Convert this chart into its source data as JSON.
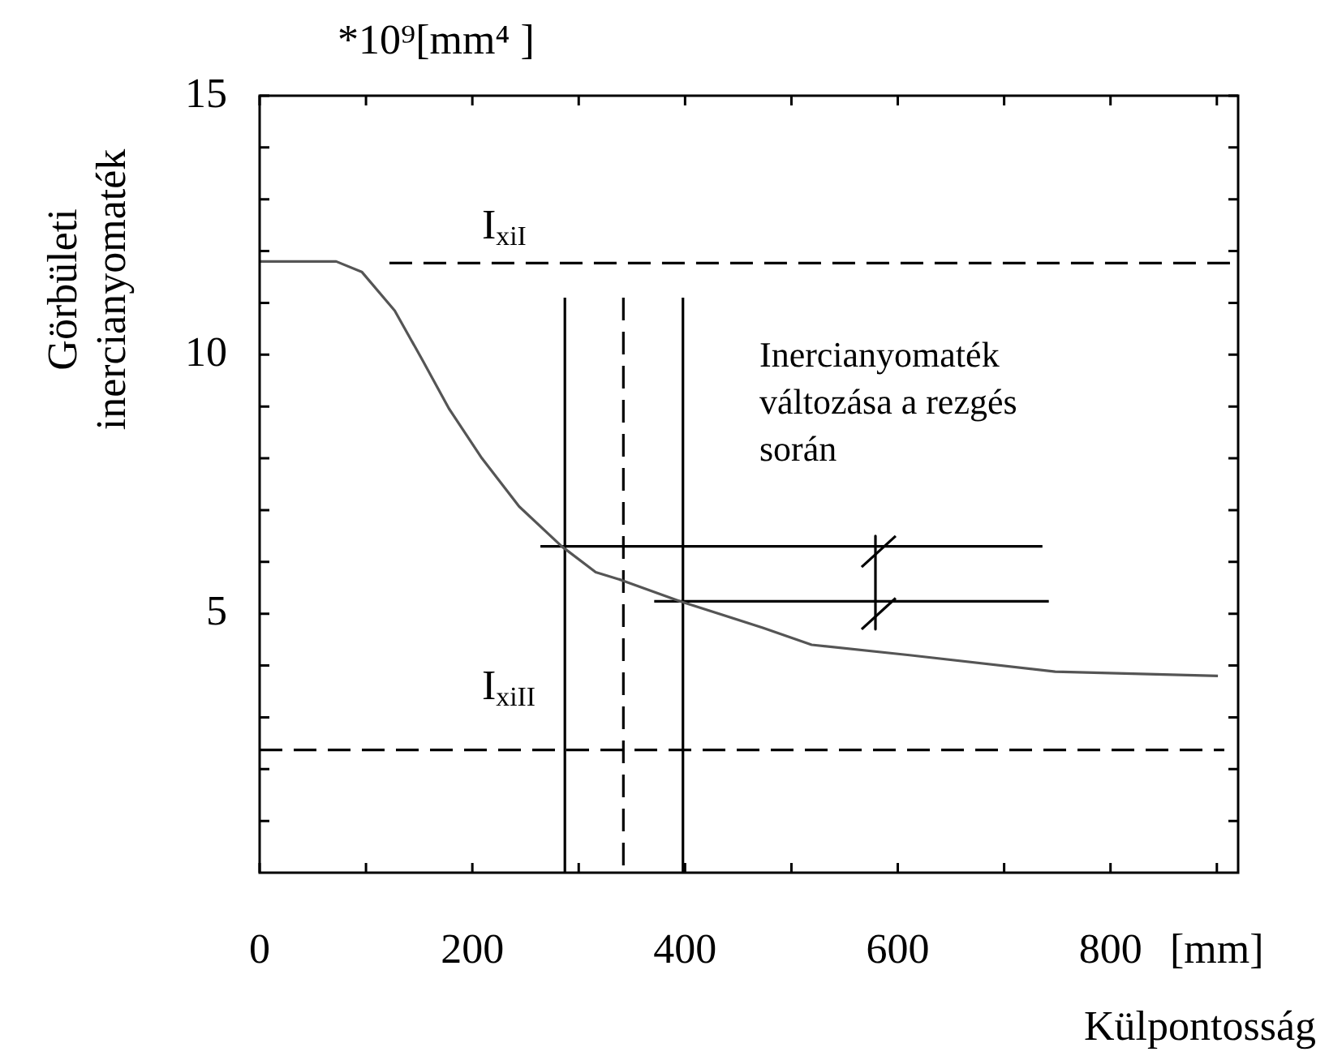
{
  "chart_data": {
    "type": "line",
    "xlabel": "Külpontosság",
    "ylabel": "Görbületi inercianyomaték",
    "xlim": [
      0,
      920
    ],
    "ylim": [
      0,
      15
    ],
    "xticks": [
      0,
      {
        "value": 100,
        "label": null
      },
      200,
      {
        "value": 300,
        "label": null
      },
      400,
      {
        "value": 500,
        "label": null
      },
      600,
      {
        "value": 700,
        "label": null
      },
      800,
      {
        "value": 900,
        "label": "[mm]"
      }
    ],
    "yticks": [
      {
        "value": 1,
        "label": null
      },
      {
        "value": 2,
        "label": null
      },
      {
        "value": 3,
        "label": null
      },
      {
        "value": 4,
        "label": null
      },
      5,
      {
        "value": 6,
        "label": null
      },
      {
        "value": 7,
        "label": null
      },
      {
        "value": 8,
        "label": null
      },
      {
        "value": 9,
        "label": null
      },
      10,
      {
        "value": 11,
        "label": null
      },
      {
        "value": 12,
        "label": null
      },
      {
        "value": 13,
        "label": null
      },
      {
        "value": 14,
        "label": null
      },
      15
    ],
    "grid": false,
    "legend": false,
    "marker": "none",
    "series": [
      {
        "x": [
          0,
          72,
          96,
          127,
          153,
          178,
          209,
          244,
          284,
          316,
          340,
          395,
          473,
          519,
          611,
          748,
          901
        ],
        "values": [
          11.8,
          11.8,
          11.6,
          10.85,
          9.9,
          8.96,
          8.0,
          7.07,
          6.3,
          5.8,
          5.65,
          5.24,
          4.73,
          4.4,
          4.2,
          3.88,
          3.8
        ],
        "color": "#555555",
        "line_style": "solid"
      },
      {
        "x": [
          122,
          920
        ],
        "values": [
          11.77,
          11.77
        ],
        "color": "#000000",
        "line_style": "dashed"
      },
      {
        "x": [
          0,
          907
        ],
        "values": [
          2.37,
          2.37
        ],
        "color": "#000000",
        "line_style": "dashed"
      },
      {
        "x": [
          287,
          287
        ],
        "values": [
          0,
          11.1
        ],
        "color": "#000000",
        "line_style": "solid"
      },
      {
        "x": [
          342,
          342
        ],
        "values": [
          11.1,
          0
        ],
        "color": "#000000",
        "line_style": "dashed"
      },
      {
        "x": [
          398,
          398
        ],
        "values": [
          0,
          11.1
        ],
        "color": "#000000",
        "line_style": "solid"
      },
      {
        "x": [
          264,
          736
        ],
        "values": [
          6.3,
          6.3
        ],
        "color": "#000000",
        "line_style": "solid"
      },
      {
        "x": [
          371,
          742
        ],
        "values": [
          5.24,
          5.24
        ],
        "color": "#000000",
        "line_style": "solid"
      },
      {
        "x": [
          579,
          579
        ],
        "values": [
          6.5,
          4.7
        ],
        "color": "#000000",
        "line_style": "solid"
      },
      {
        "x": [
          566,
          598
        ],
        "values": [
          5.9,
          6.5
        ],
        "color": "#000000",
        "line_style": "solid"
      },
      {
        "x": [
          566,
          598
        ],
        "values": [
          4.7,
          5.3
        ],
        "color": "#000000",
        "line_style": "solid"
      }
    ],
    "annotations": [
      "*10⁹[mm⁴ ]",
      "I$_{xiI}$",
      "I$_{xiII}$",
      "Inercianyomaték változása a rezgés során"
    ]
  }
}
